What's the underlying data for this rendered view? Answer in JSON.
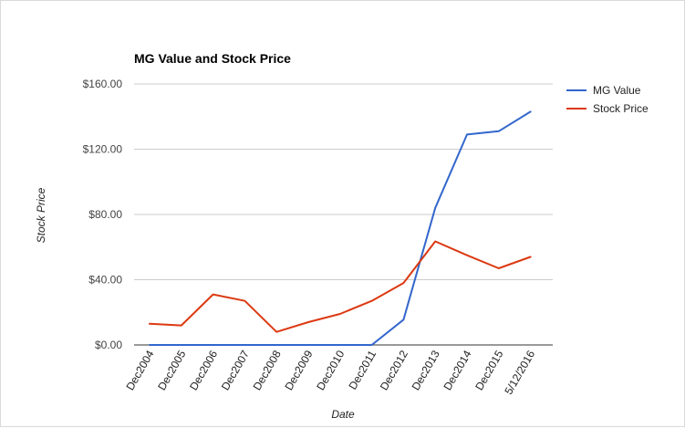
{
  "chart_data": {
    "type": "line",
    "title": "MG Value and Stock Price",
    "xlabel": "Date",
    "ylabel": "Stock Price",
    "categories": [
      "Dec2004",
      "Dec2005",
      "Dec2006",
      "Dec2007",
      "Dec2008",
      "Dec2009",
      "Dec2010",
      "Dec2011",
      "Dec2012",
      "Dec2013",
      "Dec2014",
      "Dec2015",
      "5/12/2016"
    ],
    "ylim": [
      0,
      160
    ],
    "yticks": [
      {
        "value": 0,
        "label": "$0.00"
      },
      {
        "value": 40,
        "label": "$40.00"
      },
      {
        "value": 80,
        "label": "$80.00"
      },
      {
        "value": 120,
        "label": "$120.00"
      },
      {
        "value": 160,
        "label": "$160.00"
      }
    ],
    "grid": true,
    "legend_position": "right",
    "series": [
      {
        "name": "MG Value",
        "color": "#3366cc",
        "values": [
          0,
          0,
          0,
          0,
          0,
          0,
          0,
          0,
          15.5,
          84,
          129,
          131,
          143
        ]
      },
      {
        "name": "Stock Price",
        "color": "#dc3912",
        "values": [
          13,
          12,
          31,
          27,
          8,
          14,
          19,
          27,
          38,
          63.5,
          55,
          47,
          54
        ]
      }
    ]
  }
}
